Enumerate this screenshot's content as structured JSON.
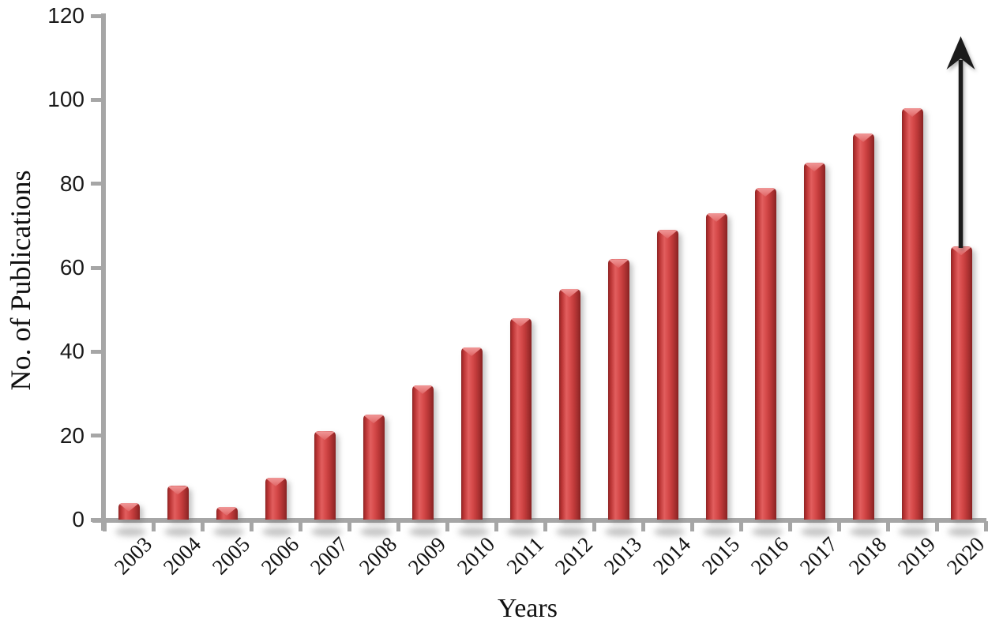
{
  "chart_data": {
    "type": "bar",
    "title": "",
    "xlabel": "Years",
    "ylabel": "No. of Publications",
    "categories": [
      "2003",
      "2004",
      "2005",
      "2006",
      "2007",
      "2008",
      "2009",
      "2010",
      "2011",
      "2012",
      "2013",
      "2014",
      "2015",
      "2016",
      "2017",
      "2018",
      "2019",
      "2020"
    ],
    "values": [
      4,
      8,
      3,
      10,
      21,
      25,
      32,
      41,
      48,
      55,
      62,
      69,
      73,
      79,
      85,
      92,
      98,
      65
    ],
    "ylim": [
      0,
      120
    ],
    "yticks": [
      0,
      20,
      40,
      60,
      80,
      100,
      120
    ],
    "grid": false,
    "legend": null,
    "bar_color": "#cf3e3e",
    "bar_edge_color": "#8e2525",
    "bar_highlight_color": "#f09898",
    "axis_color": "#a6a6a6",
    "text_color": "#111111",
    "annotation": {
      "type": "up-arrow",
      "at_category": "2020",
      "color": "#1b1b1b"
    }
  }
}
